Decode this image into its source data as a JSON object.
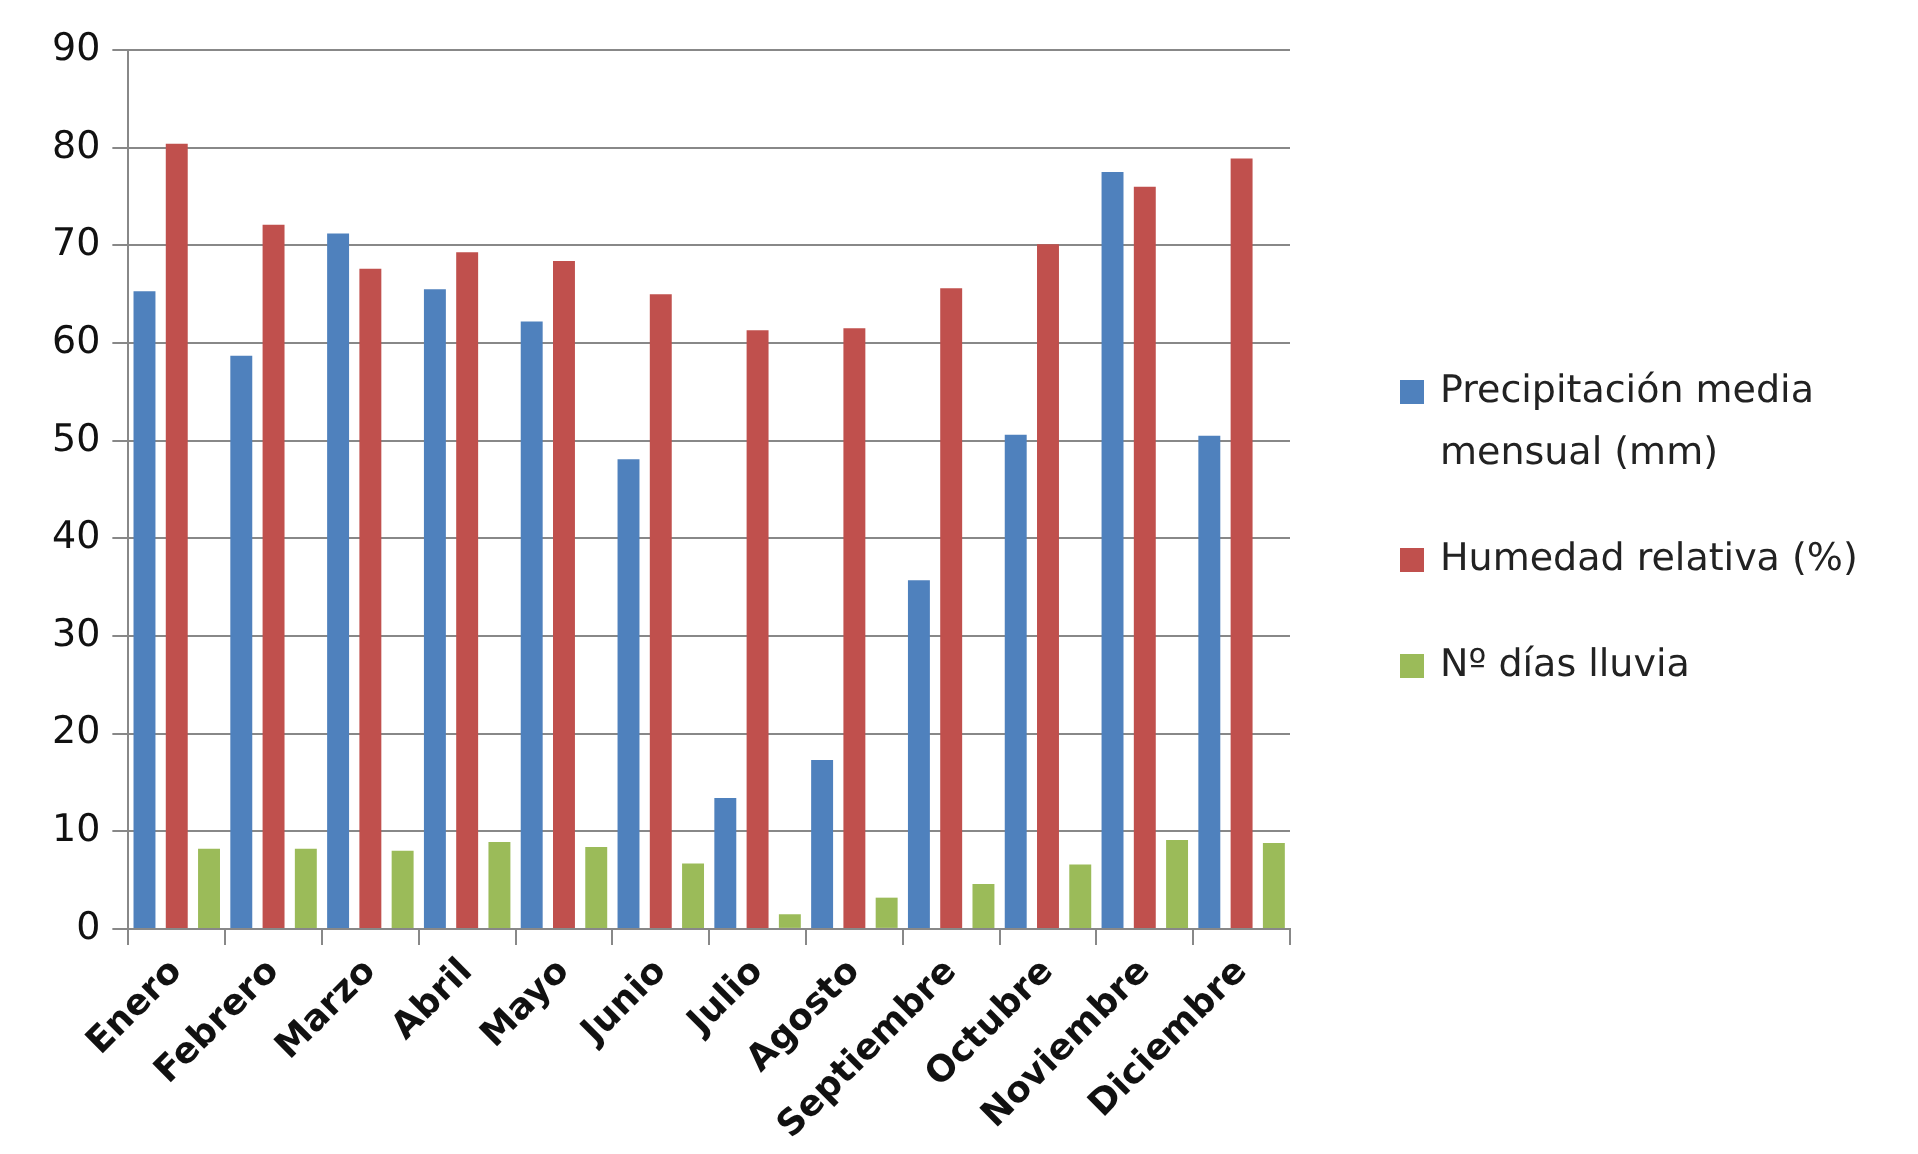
{
  "chart_data": {
    "type": "bar",
    "categories": [
      "Enero",
      "Febrero",
      "Marzo",
      "Abril",
      "Mayo",
      "Junio",
      "Julio",
      "Agosto",
      "Septiembre",
      "Octubre",
      "Noviembre",
      "Diciembre"
    ],
    "series": [
      {
        "name": "Precipitación media mensual (mm)",
        "color": "#4f81bd",
        "values": [
          65.3,
          58.7,
          71.2,
          65.5,
          62.2,
          48.1,
          13.4,
          17.3,
          35.7,
          50.6,
          77.5,
          50.5
        ]
      },
      {
        "name": "Humedad relativa (%)",
        "color": "#c0504d",
        "values": [
          80.4,
          72.1,
          67.6,
          69.3,
          68.4,
          65.0,
          61.3,
          61.5,
          65.6,
          70.1,
          76.0,
          78.9
        ]
      },
      {
        "name": "Nº días lluvia",
        "color": "#9bbb59",
        "values": [
          8.2,
          8.2,
          8.0,
          8.9,
          8.4,
          6.7,
          1.5,
          3.2,
          4.6,
          6.6,
          9.1,
          8.8
        ]
      }
    ],
    "ylim": [
      0,
      90
    ],
    "yticks": [
      0,
      10,
      20,
      30,
      40,
      50,
      60,
      70,
      80,
      90
    ],
    "grid": "y",
    "legend": "right"
  }
}
